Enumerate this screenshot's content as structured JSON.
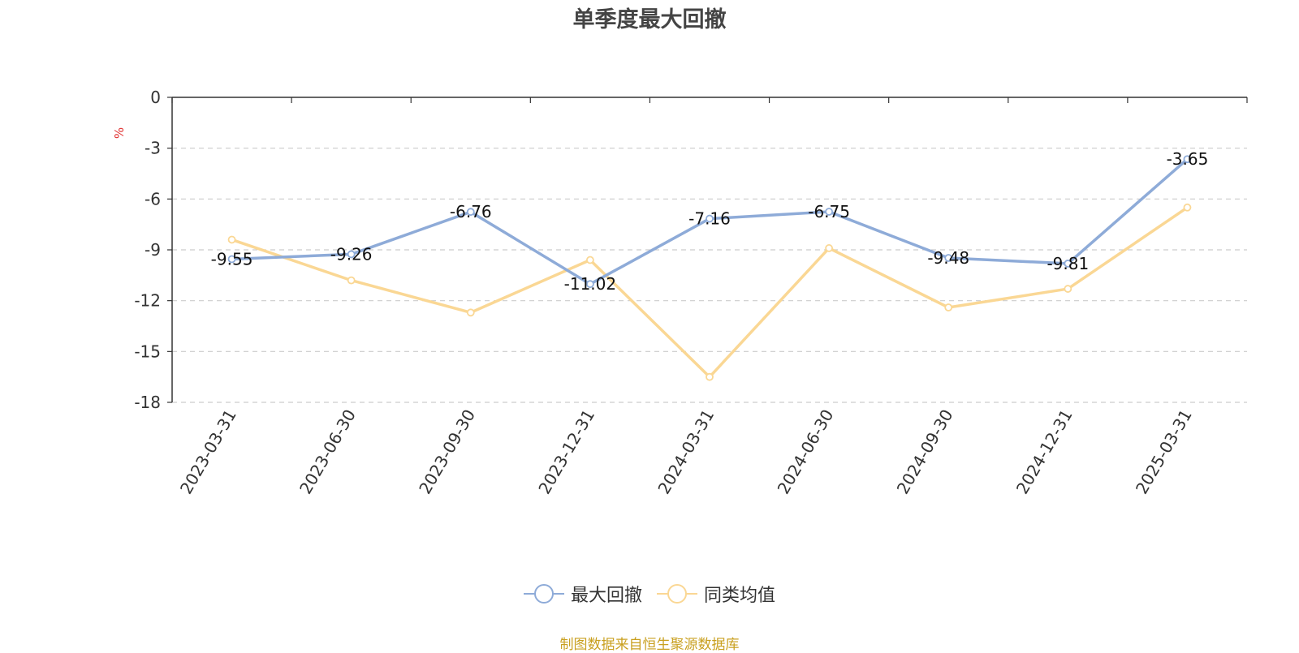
{
  "chart_data": {
    "type": "line",
    "title": "单季度最大回撤",
    "ylabel": "%",
    "categories": [
      "2023-03-31",
      "2023-06-30",
      "2023-09-30",
      "2023-12-31",
      "2024-03-31",
      "2024-06-30",
      "2024-09-30",
      "2024-12-31",
      "2025-03-31"
    ],
    "y_ticks": [
      "0",
      "-3",
      "-6",
      "-9",
      "-12",
      "-15",
      "-18"
    ],
    "ylim": [
      -18,
      0
    ],
    "grid": true,
    "legend_position": "bottom",
    "series": [
      {
        "name": "最大回撤",
        "color": "#8eabd8",
        "values": [
          -9.55,
          -9.26,
          -6.76,
          -11.02,
          -7.16,
          -6.75,
          -9.48,
          -9.81,
          -3.65
        ],
        "data_labels": [
          "-9.55",
          "-9.26",
          "-6.76",
          "-11.02",
          "-7.16",
          "-6.75",
          "-9.48",
          "-9.81",
          "-3.65"
        ]
      },
      {
        "name": "同类均值",
        "color": "#fad794",
        "values": [
          -8.4,
          -10.8,
          -12.7,
          -9.6,
          -16.5,
          -8.9,
          -12.4,
          -11.3,
          -6.5
        ]
      }
    ]
  },
  "colors": {
    "axis": "#333333",
    "grid": "#cccccc",
    "unit": "#e03030",
    "source": "#c9a020"
  },
  "source_note": "制图数据来自恒生聚源数据库"
}
